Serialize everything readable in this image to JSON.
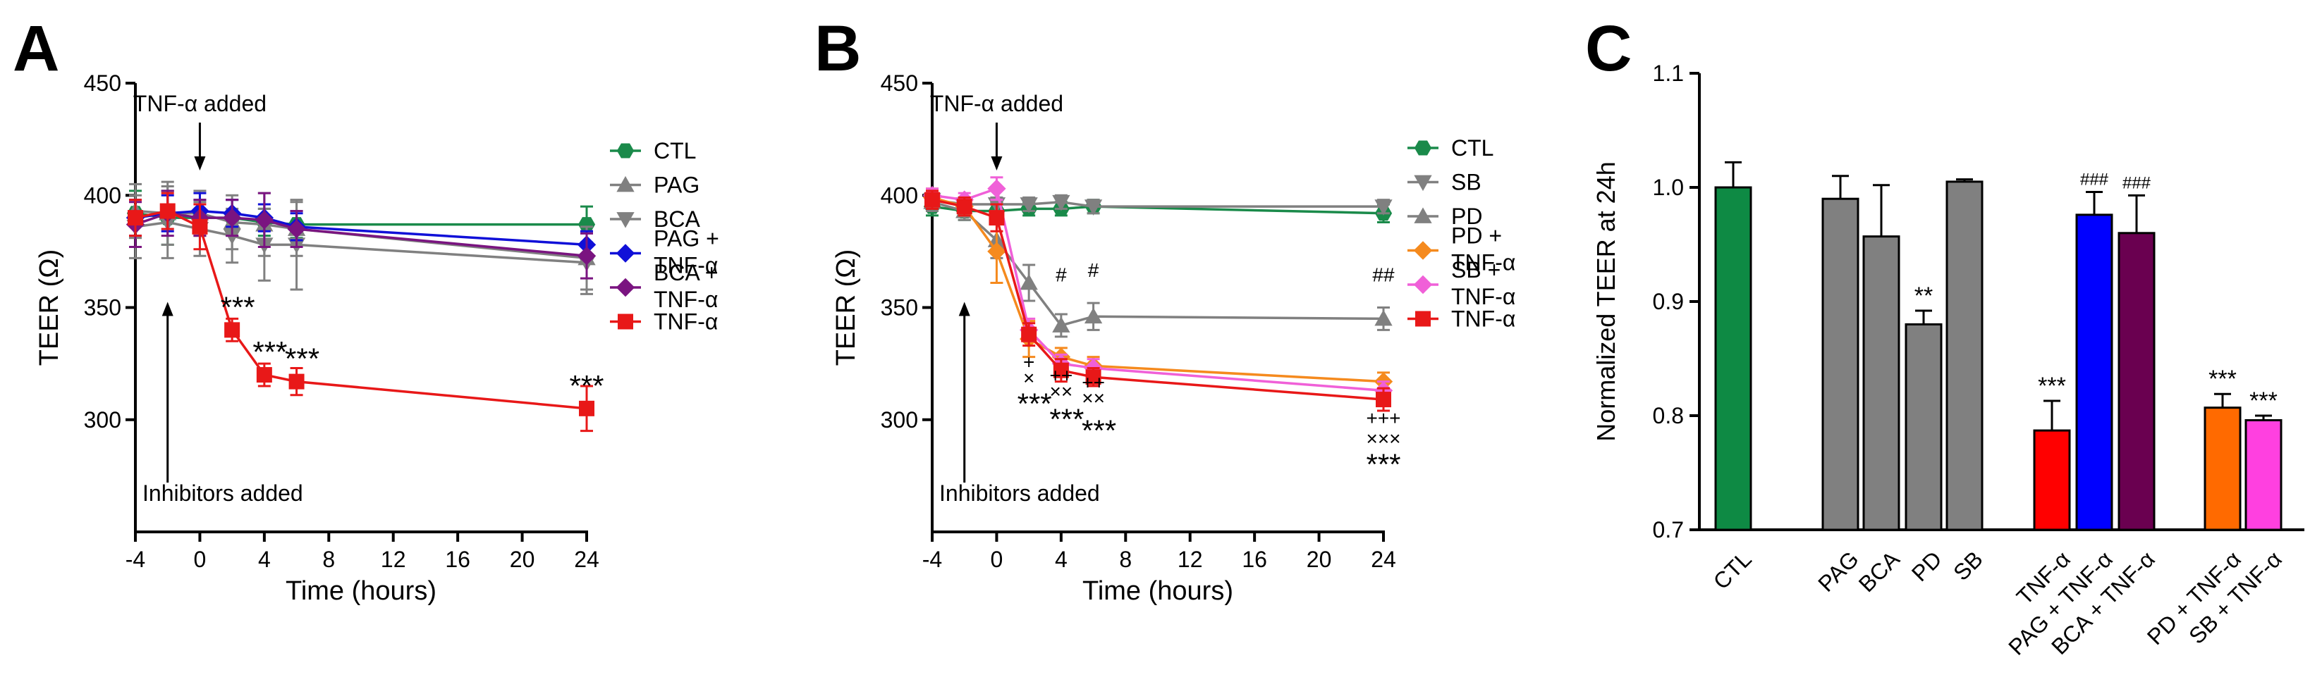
{
  "chart_data": [
    {
      "panel": "A",
      "type": "line",
      "xlabel": "Time (hours)",
      "ylabel": "TEER (Ω)",
      "xlim": [
        -4,
        24
      ],
      "ylim": [
        250,
        450
      ],
      "xticks": [
        -4,
        0,
        4,
        8,
        12,
        16,
        20,
        24
      ],
      "yticks": [
        300,
        350,
        400,
        450
      ],
      "annotations": {
        "top": "TNF-α added",
        "bottom": "Inhibitors added"
      },
      "legend": [
        {
          "label": "CTL",
          "color": "#1a8a4a",
          "marker": "hexagon"
        },
        {
          "label": "PAG",
          "color": "#808080",
          "marker": "triangle-up"
        },
        {
          "label": "BCA",
          "color": "#808080",
          "marker": "triangle-down"
        },
        {
          "label": "PAG +",
          "label2": "TNF-α",
          "color": "#1010d8",
          "marker": "diamond"
        },
        {
          "label": "BCA +",
          "label2": "TNF-α",
          "color": "#7a1480",
          "marker": "diamond"
        },
        {
          "label": "TNF-α",
          "color": "#e81818",
          "marker": "square"
        }
      ],
      "series": [
        {
          "name": "CTL",
          "color": "#1a8a4a",
          "marker": "hexagon",
          "x": [
            -4,
            -2,
            0,
            2,
            4,
            6,
            24
          ],
          "y": [
            392,
            390,
            390,
            390,
            388,
            387,
            387
          ],
          "err": [
            10,
            12,
            8,
            8,
            6,
            6,
            8
          ]
        },
        {
          "name": "PAG",
          "color": "#808080",
          "marker": "triangle-up",
          "x": [
            -4,
            -2,
            0,
            2,
            4,
            6,
            24
          ],
          "y": [
            393,
            392,
            392,
            388,
            387,
            385,
            372
          ],
          "err": [
            12,
            14,
            10,
            12,
            14,
            12,
            14
          ]
        },
        {
          "name": "BCA",
          "color": "#808080",
          "marker": "triangle-down",
          "x": [
            -4,
            -2,
            0,
            2,
            4,
            6,
            24
          ],
          "y": [
            386,
            388,
            385,
            382,
            378,
            378,
            370
          ],
          "err": [
            14,
            16,
            12,
            12,
            16,
            20,
            14
          ]
        },
        {
          "name": "PAG + TNF-α",
          "color": "#1010d8",
          "marker": "diamond",
          "x": [
            -4,
            -2,
            0,
            2,
            4,
            6,
            24
          ],
          "y": [
            390,
            392,
            393,
            392,
            390,
            386,
            378
          ],
          "err": [
            8,
            8,
            8,
            6,
            6,
            6,
            6
          ]
        },
        {
          "name": "BCA + TNF-α",
          "color": "#7a1480",
          "marker": "diamond",
          "x": [
            -4,
            -2,
            0,
            2,
            4,
            6,
            24
          ],
          "y": [
            387,
            392,
            390,
            390,
            389,
            385,
            373
          ],
          "err": [
            10,
            10,
            8,
            8,
            12,
            8,
            10
          ]
        },
        {
          "name": "TNF-α",
          "color": "#e81818",
          "marker": "square",
          "x": [
            -4,
            -2,
            0,
            2,
            4,
            6,
            24
          ],
          "y": [
            390,
            393,
            386,
            340,
            320,
            317,
            305
          ],
          "err": [
            8,
            8,
            10,
            5,
            5,
            6,
            10
          ]
        }
      ],
      "point_labels": [
        {
          "text": "***",
          "x": 2,
          "y": 340
        },
        {
          "text": "***",
          "x": 4,
          "y": 320
        },
        {
          "text": "***",
          "x": 6,
          "y": 317
        },
        {
          "text": "***",
          "x": 24,
          "y": 305
        }
      ]
    },
    {
      "panel": "B",
      "type": "line",
      "xlabel": "Time (hours)",
      "ylabel": "TEER (Ω)",
      "xlim": [
        -4,
        24
      ],
      "ylim": [
        250,
        450
      ],
      "xticks": [
        -4,
        0,
        4,
        8,
        12,
        16,
        20,
        24
      ],
      "yticks": [
        300,
        350,
        400,
        450
      ],
      "annotations": {
        "top": "TNF-α added",
        "bottom": "Inhibitors added"
      },
      "legend": [
        {
          "label": "CTL",
          "color": "#1a8a4a",
          "marker": "hexagon"
        },
        {
          "label": "SB",
          "color": "#808080",
          "marker": "triangle-down"
        },
        {
          "label": "PD",
          "color": "#808080",
          "marker": "triangle-up"
        },
        {
          "label": "PD +",
          "label2": "TNF-α",
          "color": "#f58a1e",
          "marker": "diamond"
        },
        {
          "label": "SB +",
          "label2": "TNF-α",
          "color": "#f060d8",
          "marker": "diamond"
        },
        {
          "label": "TNF-α",
          "color": "#e81818",
          "marker": "square"
        }
      ],
      "series": [
        {
          "name": "CTL",
          "color": "#1a8a4a",
          "marker": "hexagon",
          "x": [
            -4,
            -2,
            0,
            2,
            4,
            6,
            24
          ],
          "y": [
            395,
            393,
            393,
            394,
            394,
            395,
            392
          ],
          "err": [
            4,
            4,
            4,
            3,
            3,
            3,
            4
          ]
        },
        {
          "name": "SB",
          "color": "#808080",
          "marker": "triangle-down",
          "x": [
            -4,
            -2,
            0,
            2,
            4,
            6,
            24
          ],
          "y": [
            398,
            396,
            396,
            396,
            397,
            395,
            395
          ],
          "err": [
            3,
            3,
            3,
            3,
            3,
            3,
            3
          ]
        },
        {
          "name": "PD",
          "color": "#808080",
          "marker": "triangle-up",
          "x": [
            -4,
            -2,
            0,
            2,
            4,
            6,
            24
          ],
          "y": [
            397,
            393,
            380,
            361,
            342,
            346,
            345
          ],
          "err": [
            4,
            4,
            8,
            8,
            5,
            6,
            5
          ]
        },
        {
          "name": "PD + TNF-α",
          "color": "#f58a1e",
          "marker": "diamond",
          "x": [
            -4,
            -2,
            0,
            2,
            4,
            6,
            24
          ],
          "y": [
            399,
            395,
            375,
            336,
            328,
            324,
            317
          ],
          "err": [
            4,
            4,
            14,
            8,
            4,
            4,
            4
          ]
        },
        {
          "name": "SB + TNF-α",
          "color": "#f060d8",
          "marker": "diamond",
          "x": [
            -4,
            -2,
            0,
            2,
            4,
            6,
            24
          ],
          "y": [
            400,
            398,
            403,
            340,
            325,
            323,
            313
          ],
          "err": [
            3,
            3,
            5,
            5,
            4,
            4,
            4
          ]
        },
        {
          "name": "TNF-α",
          "color": "#e81818",
          "marker": "square",
          "x": [
            -4,
            -2,
            0,
            2,
            4,
            6,
            24
          ],
          "y": [
            398,
            395,
            390,
            338,
            322,
            319,
            309
          ],
          "err": [
            4,
            4,
            6,
            5,
            5,
            4,
            5
          ]
        }
      ],
      "point_labels": [
        {
          "text": "#",
          "x": 4,
          "y": 356
        },
        {
          "text": "#",
          "x": 6,
          "y": 358
        },
        {
          "text": "##",
          "x": 24,
          "y": 356
        },
        {
          "text": "+",
          "x": 2,
          "y": 317
        },
        {
          "text": "×",
          "x": 2,
          "y": 310
        },
        {
          "text": "***",
          "x": 2,
          "y": 297
        },
        {
          "text": "++",
          "x": 4,
          "y": 311
        },
        {
          "text": "××",
          "x": 4,
          "y": 304
        },
        {
          "text": "***",
          "x": 4,
          "y": 290
        },
        {
          "text": "++",
          "x": 6,
          "y": 308
        },
        {
          "text": "××",
          "x": 6,
          "y": 301
        },
        {
          "text": "***",
          "x": 6,
          "y": 285
        },
        {
          "text": "+++",
          "x": 24,
          "y": 292
        },
        {
          "text": "×××",
          "x": 24,
          "y": 283
        },
        {
          "text": "***",
          "x": 24,
          "y": 270
        }
      ]
    },
    {
      "panel": "C",
      "type": "bar",
      "ylabel": "Normalized TEER at 24h",
      "ylim": [
        0.7,
        1.1
      ],
      "yticks": [
        0.7,
        0.8,
        0.9,
        1.0,
        1.1
      ],
      "categories": [
        "CTL",
        "PAG",
        "BCA",
        "PD",
        "SB",
        "TNF-α",
        "PAG + TNF-α",
        "BCA + TNF-α",
        "PD + TNF-α",
        "SB + TNF-α"
      ],
      "values": [
        1.0,
        0.99,
        0.957,
        0.88,
        1.005,
        0.787,
        0.976,
        0.96,
        0.807,
        0.796
      ],
      "errors": [
        0.022,
        0.02,
        0.045,
        0.012,
        0.002,
        0.026,
        0.02,
        0.033,
        0.012,
        0.004
      ],
      "colors": [
        "#0e8a44",
        "#808080",
        "#808080",
        "#808080",
        "#808080",
        "#ff0000",
        "#0000ff",
        "#6a0050",
        "#ff6a00",
        "#ff40e0"
      ],
      "sig": [
        "",
        "",
        "",
        "**",
        "",
        "***",
        "###",
        "###",
        "***",
        "***"
      ]
    }
  ],
  "panel_labels": [
    "A",
    "B",
    "C"
  ]
}
